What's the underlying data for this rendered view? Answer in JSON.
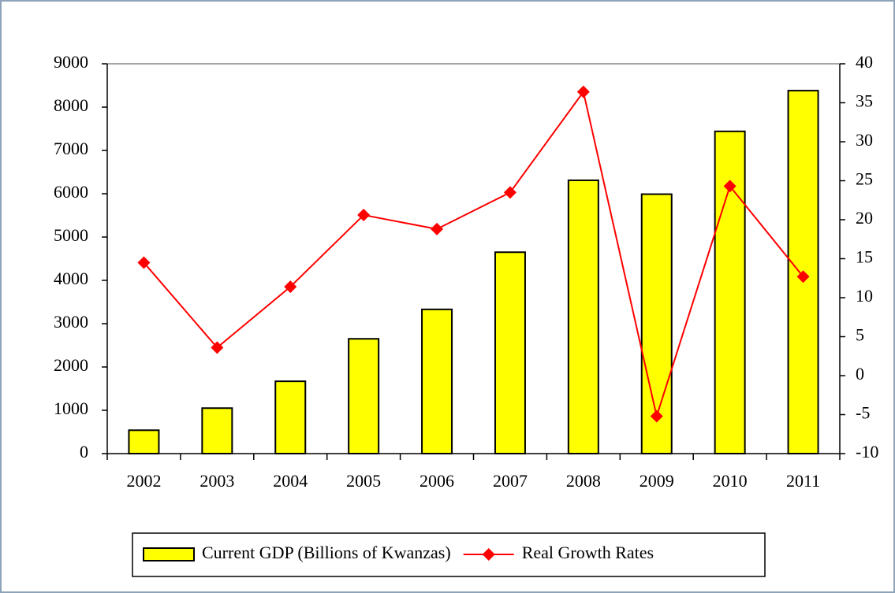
{
  "chart_data": {
    "type": "bar",
    "categories": [
      "2002",
      "2003",
      "2004",
      "2005",
      "2006",
      "2007",
      "2008",
      "2009",
      "2010",
      "2011"
    ],
    "series": [
      {
        "name": "Current GDP (Billions of Kwanzas)",
        "type": "bar",
        "color": "#ffff00",
        "values": [
          540,
          1050,
          1670,
          2650,
          3330,
          4650,
          6310,
          5990,
          7440,
          8380
        ]
      },
      {
        "name": "Real Growth Rates",
        "type": "line",
        "axis": "y2",
        "color": "#ff0000",
        "values": [
          14.5,
          3.6,
          11.4,
          20.6,
          18.8,
          23.5,
          36.4,
          -5.2,
          24.3,
          12.7
        ]
      }
    ],
    "ylim": [
      0,
      9000
    ],
    "yticks": [
      0,
      1000,
      2000,
      3000,
      4000,
      5000,
      6000,
      7000,
      8000,
      9000
    ],
    "y2lim": [
      -10,
      40
    ],
    "y2ticks": [
      -10,
      -5,
      0,
      5,
      10,
      15,
      20,
      25,
      30,
      35,
      40
    ],
    "legend": "bottom"
  }
}
